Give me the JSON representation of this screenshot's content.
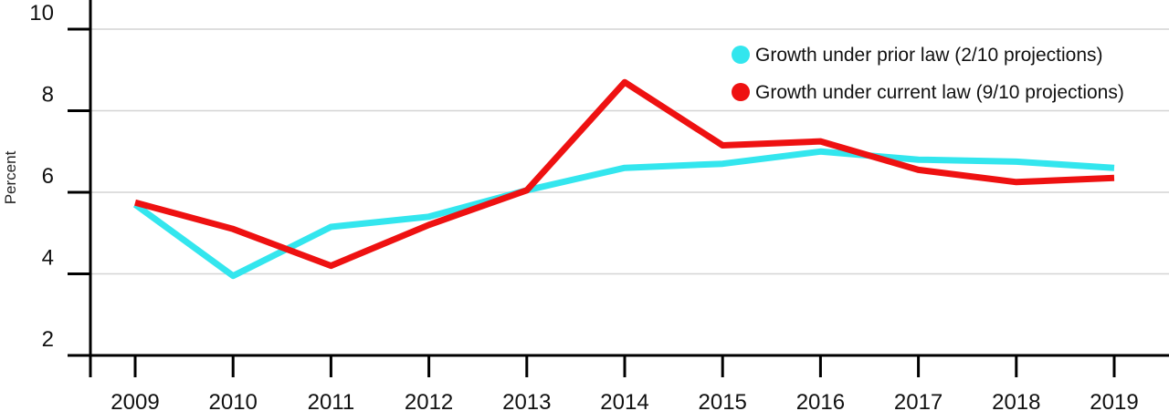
{
  "chart_data": {
    "type": "line",
    "x": [
      "2009",
      "2010",
      "2011",
      "2012",
      "2013",
      "2014",
      "2015",
      "2016",
      "2017",
      "2018",
      "2019"
    ],
    "ylabel": "Percent",
    "ylim": [
      2,
      10
    ],
    "yticks": [
      2,
      4,
      6,
      8,
      10
    ],
    "grid": "horizontal",
    "legend_position": "top-right",
    "series": [
      {
        "name": "Growth under prior law (2/10 projections)",
        "color": "#33e6ee",
        "values": [
          5.7,
          3.95,
          5.15,
          5.4,
          6.05,
          6.6,
          6.7,
          7.0,
          6.8,
          6.75,
          6.6
        ]
      },
      {
        "name": "Growth under current law (9/10 projections)",
        "color": "#ee1111",
        "values": [
          5.75,
          5.1,
          4.2,
          5.2,
          6.05,
          8.7,
          7.15,
          7.25,
          6.55,
          6.25,
          6.35
        ]
      }
    ]
  }
}
